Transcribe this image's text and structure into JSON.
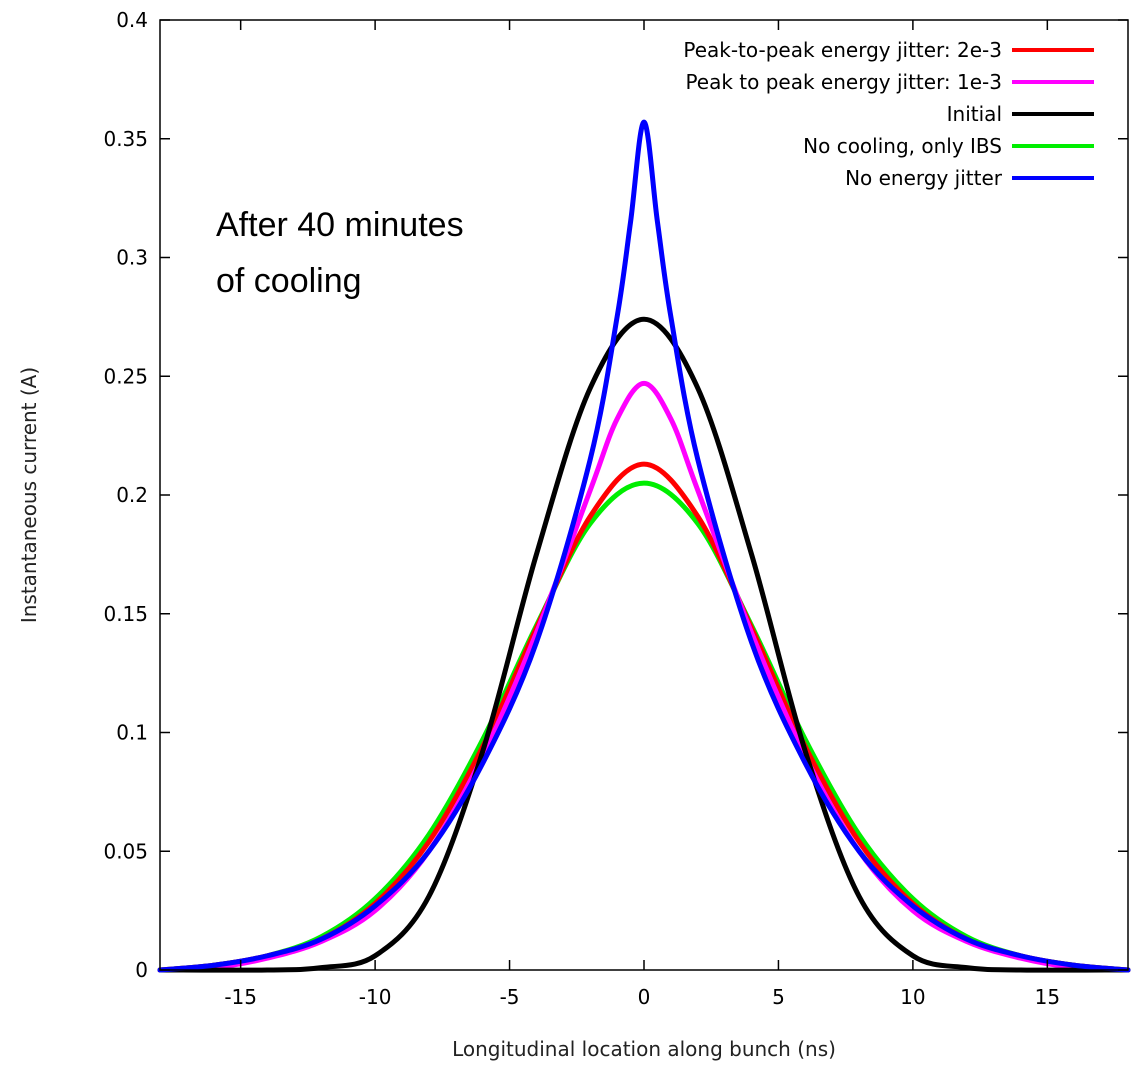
{
  "chart_data": {
    "type": "line",
    "title": "",
    "xlabel": "Longitudinal location along bunch (ns)",
    "ylabel": "Instantaneous current (A)",
    "xlim": [
      -18,
      18
    ],
    "ylim": [
      0,
      0.4
    ],
    "x_ticks": [
      -15,
      -10,
      -5,
      0,
      5,
      10,
      15
    ],
    "x_tick_labels": [
      "-15",
      "-10",
      "-5",
      "0",
      "5",
      "10",
      "15"
    ],
    "y_ticks": [
      0,
      0.05,
      0.1,
      0.15,
      0.2,
      0.25,
      0.3,
      0.35,
      0.4
    ],
    "y_tick_labels": [
      "0",
      "0.05",
      "0.1",
      "0.15",
      "0.2",
      "0.25",
      "0.3",
      "0.35",
      "0.4"
    ],
    "grid": false,
    "legend_position": "top-right",
    "annotation": [
      "After 40 minutes",
      "of cooling"
    ],
    "series": [
      {
        "name": "Peak-to-peak energy jitter: 2e-3",
        "color": "#ff0000",
        "x": [
          -18,
          -16,
          -14,
          -12,
          -10,
          -8,
          -6,
          -4,
          -2,
          0,
          2,
          4,
          6,
          8,
          10,
          12,
          14,
          16,
          18
        ],
        "y": [
          0.0,
          0.002,
          0.006,
          0.013,
          0.028,
          0.054,
          0.094,
          0.144,
          0.191,
          0.213,
          0.191,
          0.144,
          0.094,
          0.054,
          0.028,
          0.013,
          0.006,
          0.002,
          0.0
        ]
      },
      {
        "name": "Peak to peak energy jitter: 1e-3",
        "color": "#ff00ff",
        "x": [
          -18,
          -16,
          -14,
          -12,
          -10,
          -8,
          -6,
          -4,
          -2,
          -1,
          0,
          1,
          2,
          4,
          6,
          8,
          10,
          12,
          14,
          16,
          18
        ],
        "y": [
          0.0,
          0.001,
          0.005,
          0.012,
          0.025,
          0.05,
          0.09,
          0.142,
          0.202,
          0.232,
          0.247,
          0.232,
          0.202,
          0.142,
          0.09,
          0.05,
          0.025,
          0.012,
          0.005,
          0.001,
          0.0
        ]
      },
      {
        "name": "Initial",
        "color": "#000000",
        "x": [
          -18,
          -14,
          -12,
          -10,
          -8,
          -6,
          -4,
          -2,
          0,
          2,
          4,
          6,
          8,
          10,
          12,
          14,
          18
        ],
        "y": [
          0.0,
          0.0,
          0.001,
          0.006,
          0.031,
          0.092,
          0.175,
          0.245,
          0.274,
          0.245,
          0.175,
          0.092,
          0.031,
          0.006,
          0.001,
          0.0,
          0.0
        ]
      },
      {
        "name": "No cooling, only IBS",
        "color": "#00ee00",
        "x": [
          -18,
          -16,
          -14,
          -12,
          -10,
          -8,
          -6,
          -4,
          -2,
          0,
          2,
          4,
          6,
          8,
          10,
          12,
          14,
          16,
          18
        ],
        "y": [
          0.0,
          0.002,
          0.006,
          0.014,
          0.03,
          0.057,
          0.097,
          0.145,
          0.188,
          0.205,
          0.188,
          0.145,
          0.097,
          0.057,
          0.03,
          0.014,
          0.006,
          0.002,
          0.0
        ]
      },
      {
        "name": "No energy jitter",
        "color": "#0000ff",
        "x": [
          -18,
          -16,
          -14,
          -12,
          -10,
          -8,
          -6,
          -4,
          -2,
          -1,
          -0.5,
          0,
          0.5,
          1,
          2,
          4,
          6,
          8,
          10,
          12,
          14,
          16,
          18
        ],
        "y": [
          0.0,
          0.002,
          0.006,
          0.013,
          0.027,
          0.05,
          0.087,
          0.138,
          0.215,
          0.275,
          0.315,
          0.357,
          0.315,
          0.275,
          0.215,
          0.138,
          0.087,
          0.05,
          0.027,
          0.013,
          0.006,
          0.002,
          0.0
        ]
      }
    ]
  }
}
